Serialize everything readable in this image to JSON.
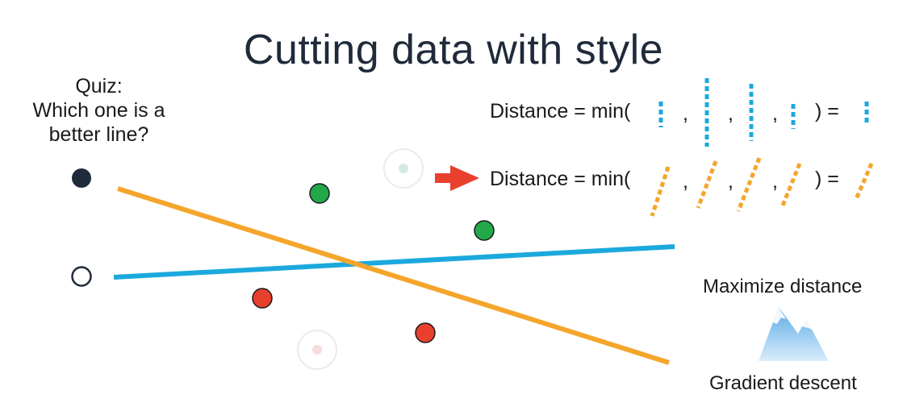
{
  "title": "Cutting data with style",
  "quiz": {
    "line1": "Quiz:",
    "line2": "Which one is a",
    "line3": "better line?"
  },
  "distance_rows": {
    "prefix": "Distance = min(",
    "comma": ",",
    "close": ") =",
    "row_colors": [
      "#1ba9dd",
      "#f4a52a"
    ]
  },
  "maximize_label": "Maximize distance",
  "gradient_label": "Gradient descent",
  "colors": {
    "blue_line": "#1ba9dd",
    "orange_line": "#f4a52a",
    "green_point": "#22a94b",
    "red_point": "#e8402d",
    "arrow": "#e8402d",
    "legend_filled": "#1f2a3a"
  },
  "icons": {
    "arrow": "right-arrow-icon",
    "mountain": "mountain-icon"
  }
}
